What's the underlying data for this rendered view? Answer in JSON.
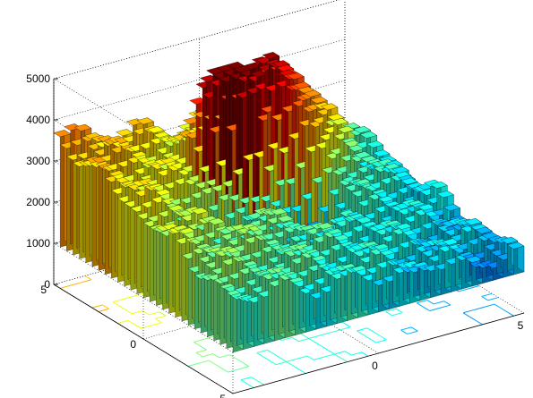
{
  "chart_data": {
    "type": "surface3d-contour",
    "title": "",
    "xlabel": "",
    "ylabel": "",
    "zlabel": "",
    "xlim": [
      -5,
      5
    ],
    "ylim": [
      -5,
      5
    ],
    "zlim": [
      0,
      5000
    ],
    "x_ticks": [
      "-5",
      "0",
      "5"
    ],
    "y_ticks": [
      "-5",
      "0",
      "5"
    ],
    "z_ticks": [
      "0",
      "1000",
      "2000",
      "3000",
      "4000",
      "5000"
    ],
    "grid": true,
    "colormap": "jet",
    "grid_size": [
      28,
      28
    ],
    "surface_description": {
      "base_level": 2300,
      "corner_highs": [
        {
          "x": -5,
          "y": 5,
          "z": 4000
        }
      ],
      "edge_lows": [
        {
          "x": 5,
          "y": 0,
          "z": 1200
        }
      ],
      "peaks": [
        {
          "x": -0.8,
          "y": 2.5,
          "z": 4900,
          "width": 0.5
        },
        {
          "x": -0.2,
          "y": 2.0,
          "z": 4300,
          "width": 0.5
        },
        {
          "x": 1.5,
          "y": 3.0,
          "z": 4600,
          "width": 1.2
        }
      ],
      "pits": [
        {
          "x": -2.3,
          "y": 0.2,
          "z": 350,
          "width": 0.5
        },
        {
          "x": 0.6,
          "y": 0.2,
          "z": 900,
          "width": 0.8
        }
      ]
    }
  }
}
